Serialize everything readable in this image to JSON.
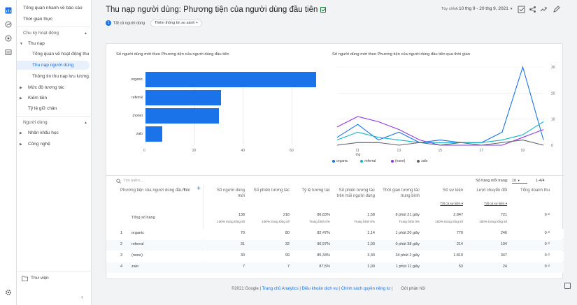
{
  "sidebar": {
    "items": [
      {
        "label": "Tổng quan nhanh về báo cáo"
      },
      {
        "label": "Thời gian thực"
      },
      {
        "label": "Chu kỳ hoạt động"
      },
      {
        "label": "Thu nạp"
      },
      {
        "label": "Tổng quan về hoạt động thu..."
      },
      {
        "label": "Thu nạp người dùng"
      },
      {
        "label": "Thông tin thu nạp lưu lượng..."
      },
      {
        "label": "Mức độ tương tác"
      },
      {
        "label": "Kiếm tiền"
      },
      {
        "label": "Tỷ lệ giữ chân"
      },
      {
        "label": "Người dùng"
      },
      {
        "label": "Nhân khẩu học"
      },
      {
        "label": "Công nghệ"
      }
    ],
    "library_label": "Thư viện"
  },
  "header": {
    "title": "Thu nạp người dùng: Phương tiện của người dùng đầu tiên",
    "date_label": "Tùy chỉnh",
    "date_range": "10 thg 9 - 20 thg 9, 2021"
  },
  "comparison": {
    "chip_num": "1",
    "chip_label": "Tất cả người dùng",
    "add_label": "Thêm thông tin so sánh"
  },
  "bar_chart": {
    "title": "Số người dùng mới theo Phương tiện của người dùng đầu tiên",
    "chart_data": {
      "type": "bar",
      "categories": [
        "organic",
        "referral",
        "(none)",
        "zalo"
      ],
      "values": [
        70,
        31,
        30,
        7
      ],
      "xticks": [
        "0",
        "20",
        "40",
        "60"
      ],
      "xlim": [
        0,
        70
      ]
    }
  },
  "line_chart": {
    "title": "Số người dùng mới theo Phương tiện của người dùng đầu tiên qua thời gian",
    "chart_data": {
      "type": "line",
      "x": [
        "10",
        "11",
        "12",
        "13",
        "14",
        "15",
        "16",
        "17",
        "18",
        "19",
        "20"
      ],
      "xticks": [
        "11\nthg",
        "13",
        "15",
        "17",
        "19"
      ],
      "yticks": [
        "0",
        "10",
        "20",
        "30"
      ],
      "ylim": [
        0,
        30
      ],
      "series": [
        {
          "name": "organic",
          "color": "#1a73e8",
          "values": [
            3,
            8,
            2,
            5,
            1,
            2,
            1,
            1,
            5,
            30,
            2
          ]
        },
        {
          "name": "referral",
          "color": "#12b5cb",
          "values": [
            2,
            5,
            3,
            2,
            1,
            1,
            1,
            1,
            2,
            4,
            9
          ]
        },
        {
          "name": "(none)",
          "color": "#9334e6",
          "values": [
            7,
            11,
            9,
            6,
            2,
            0,
            0,
            0,
            0,
            3,
            6
          ]
        },
        {
          "name": "zalo",
          "color": "#5f6368",
          "values": [
            0,
            1,
            1,
            0,
            1,
            0,
            1,
            0,
            1,
            2,
            0
          ]
        }
      ]
    }
  },
  "table": {
    "search_placeholder": "Tìm kiếm...",
    "rows_per_page_label": "Số hàng mỗi trang:",
    "rows_per_page": "10",
    "pagination": "1-4/4",
    "dimension_header": "Phương tiện của người dùng đầu tiên",
    "columns": [
      {
        "label": "Số người dùng mới"
      },
      {
        "label": "Số phiên tương tác"
      },
      {
        "label": "Tỷ lệ tương tác"
      },
      {
        "label": "Số phiên tương tác trên mỗi người dùng"
      },
      {
        "label": "Thời gian tương tác trung bình"
      },
      {
        "label": "Số sự kiện",
        "sub": "Tất cả sự kiện"
      },
      {
        "label": "Lượt chuyển đổi",
        "sub": "Tất cả sự kiện"
      },
      {
        "label": "Tổng doanh thu"
      }
    ],
    "total": {
      "label": "Tổng số hàng",
      "values": [
        "138",
        "218",
        "86,83%",
        "1,58",
        "8 phút 21 giây",
        "2.847",
        "721",
        "0 ₫"
      ],
      "subs": [
        "100% trong tổng số",
        "100% trong tổng số",
        "Trung bình 0%",
        "Trung bình 0%",
        "Trung bình 0%",
        "100% trong tổng số",
        "100% trong tổng số",
        ""
      ]
    },
    "rows": [
      {
        "idx": "1",
        "name": "organic",
        "values": [
          "70",
          "80",
          "82,47%",
          "1,14",
          "1 phút 20 giây",
          "770",
          "246",
          "0 ₫"
        ]
      },
      {
        "idx": "2",
        "name": "referral",
        "values": [
          "31",
          "32",
          "96,97%",
          "1,03",
          "0 phút 38 giây",
          "214",
          "104",
          "0 ₫"
        ]
      },
      {
        "idx": "3",
        "name": "(none)",
        "values": [
          "30",
          "99",
          "85,34%",
          "3,30",
          "34 phút 2 giây",
          "1.810",
          "347",
          "0 ₫"
        ]
      },
      {
        "idx": "4",
        "name": "zalo",
        "values": [
          "7",
          "7",
          "87,5%",
          "1,00",
          "1 phút 11 giây",
          "53",
          "24",
          "0 ₫"
        ]
      }
    ]
  },
  "footer": {
    "copyright": "©2021 Google |",
    "links": [
      "Trang chủ Analytics",
      "Điều khoản dịch vụ",
      "Chính sách quyền riêng tư"
    ],
    "feedback": "Gửi phản hồi"
  }
}
